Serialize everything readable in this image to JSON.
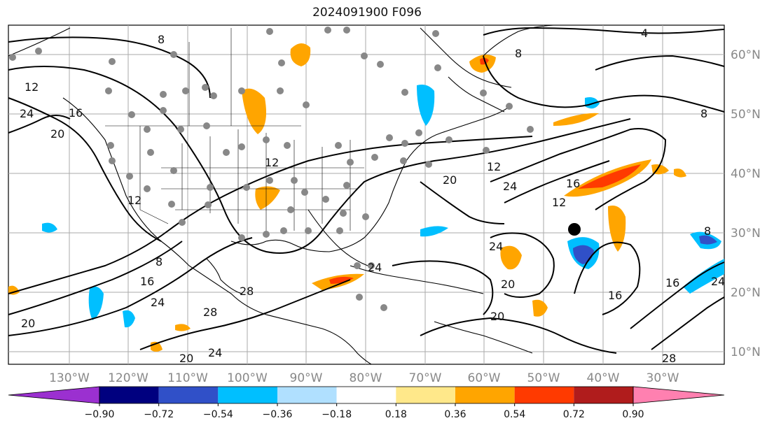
{
  "title": "2024091900 F096",
  "lon_labels": [
    "130°W",
    "120°W",
    "110°W",
    "100°W",
    "90°W",
    "80°W",
    "70°W",
    "60°W",
    "50°W",
    "40°W",
    "30°W"
  ],
  "lat_labels": [
    "60°N",
    "50°N",
    "40°N",
    "30°N",
    "20°N",
    "10°N"
  ],
  "contour_labels": [
    "8",
    "4",
    "8",
    "12",
    "16",
    "24",
    "20",
    "8",
    "12",
    "16",
    "20",
    "24",
    "12",
    "20",
    "24",
    "16",
    "28",
    "20",
    "24",
    "12",
    "16",
    "8",
    "20",
    "24",
    "28",
    "20",
    "8",
    "24",
    "16",
    "28",
    "12",
    "24"
  ],
  "colorbar": {
    "colors": [
      "#9b30d0",
      "#00007f",
      "#3050c8",
      "#00bfff",
      "#b0e0ff",
      "#ffffff",
      "#ffe88a",
      "#ffa500",
      "#ff3a00",
      "#b01c1c",
      "#ff80b0"
    ],
    "ticks": [
      "−0.90",
      "−0.72",
      "−0.54",
      "−0.36",
      "−0.18",
      "0.18",
      "0.36",
      "0.54",
      "0.72",
      "0.90"
    ]
  }
}
